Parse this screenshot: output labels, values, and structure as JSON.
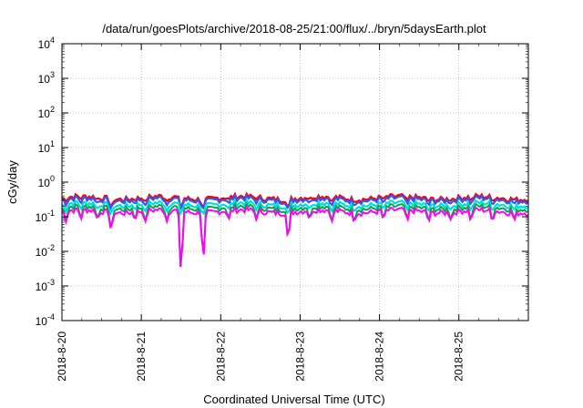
{
  "chart_data": {
    "type": "line",
    "title": "/data/run/goesPlots/archive/2018-08-25/21:00/flux/../bryn/5daysEarth.plot",
    "xlabel": "Coordinated Universal Time (UTC)",
    "ylabel": "cGy/day",
    "yscale": "log",
    "ylim": [
      0.0001,
      10000
    ],
    "xlim_days": [
      "2018-8-20",
      "2018-8-25 21:00"
    ],
    "xtick_labels": [
      "2018-8-20",
      "2018-8-21",
      "2018-8-22",
      "2018-8-23",
      "2018-8-24",
      "2018-8-25"
    ],
    "ytick_labels": [
      {
        "base": "10",
        "exp": "-4"
      },
      {
        "base": "10",
        "exp": "-3"
      },
      {
        "base": "10",
        "exp": "-2"
      },
      {
        "base": "10",
        "exp": "-1"
      },
      {
        "base": "10",
        "exp": "0"
      },
      {
        "base": "10",
        "exp": "1"
      },
      {
        "base": "10",
        "exp": "2"
      },
      {
        "base": "10",
        "exp": "3"
      },
      {
        "base": "10",
        "exp": "4"
      }
    ],
    "grid": true,
    "series": [
      {
        "color": "#ff0000",
        "baseline": 0.37
      },
      {
        "color": "#3355ff",
        "baseline": 0.33
      },
      {
        "color": "#00dddd",
        "baseline": 0.24
      },
      {
        "color": "#00aa44",
        "baseline": 0.19
      },
      {
        "color": "#ff00ff",
        "baseline": 0.15
      }
    ],
    "dips": [
      {
        "day": 0.05,
        "value": 0.07
      },
      {
        "day": 0.24,
        "value": 0.08
      },
      {
        "day": 0.45,
        "value": 0.08
      },
      {
        "day": 0.62,
        "value": 0.035
      },
      {
        "day": 0.92,
        "value": 0.08
      },
      {
        "day": 1.05,
        "value": 0.07
      },
      {
        "day": 1.32,
        "value": 0.07
      },
      {
        "day": 1.5,
        "value": 0.0015
      },
      {
        "day": 1.78,
        "value": 0.004
      },
      {
        "day": 2.1,
        "value": 0.08
      },
      {
        "day": 2.45,
        "value": 0.08
      },
      {
        "day": 2.85,
        "value": 0.017
      },
      {
        "day": 3.12,
        "value": 0.08
      },
      {
        "day": 3.4,
        "value": 0.07
      },
      {
        "day": 3.68,
        "value": 0.07
      },
      {
        "day": 4.05,
        "value": 0.08
      },
      {
        "day": 4.35,
        "value": 0.07
      },
      {
        "day": 4.62,
        "value": 0.07
      },
      {
        "day": 4.9,
        "value": 0.08
      },
      {
        "day": 5.15,
        "value": 0.07
      },
      {
        "day": 5.42,
        "value": 0.07
      },
      {
        "day": 5.7,
        "value": 0.08
      }
    ]
  }
}
